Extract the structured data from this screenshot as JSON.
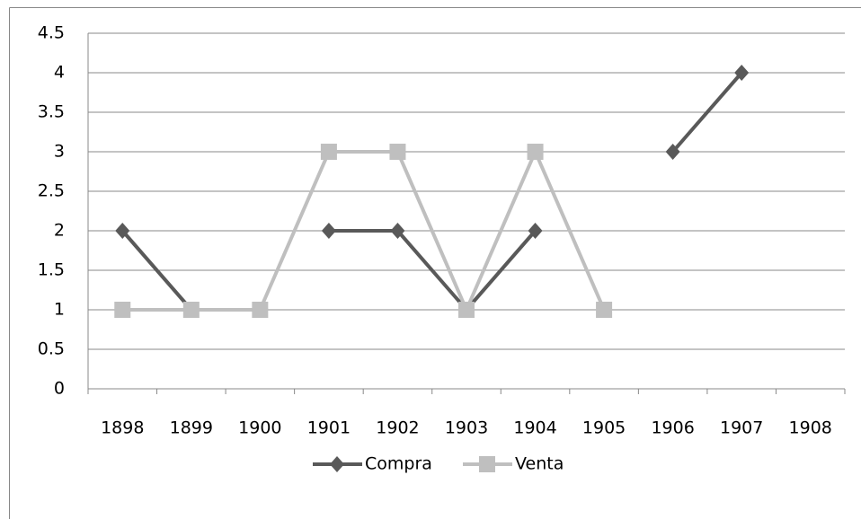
{
  "chart_data": {
    "type": "line",
    "categories": [
      "1898",
      "1899",
      "1900",
      "1901",
      "1902",
      "1903",
      "1904",
      "1905",
      "1906",
      "1907",
      "1908"
    ],
    "series": [
      {
        "name": "Compra",
        "color": "#595959",
        "marker": "diamond",
        "values": [
          2,
          1,
          null,
          2,
          2,
          1,
          2,
          null,
          3,
          4,
          null
        ]
      },
      {
        "name": "Venta",
        "color": "#bfbfbf",
        "marker": "square",
        "values": [
          1,
          1,
          1,
          3,
          3,
          1,
          3,
          1,
          null,
          null,
          null
        ]
      }
    ],
    "ylim": [
      0,
      4.5
    ],
    "yticks": [
      0,
      0.5,
      1,
      1.5,
      2,
      2.5,
      3,
      3.5,
      4,
      4.5
    ],
    "grid": true,
    "legend": "bottom"
  }
}
